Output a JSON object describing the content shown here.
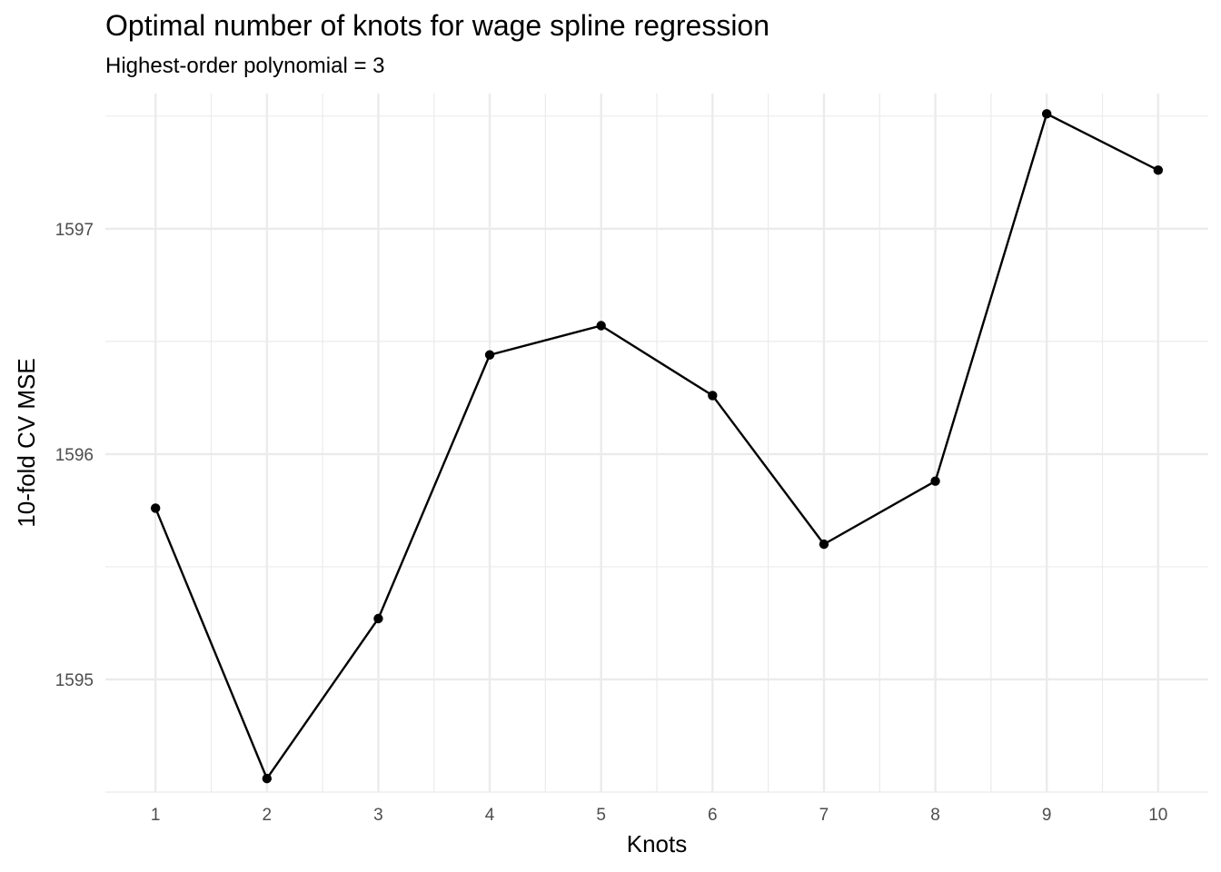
{
  "chart_data": {
    "type": "line",
    "title": "Optimal number of knots for wage spline regression",
    "subtitle": "Highest-order polynomial = 3",
    "xlabel": "Knots",
    "ylabel": "10-fold CV MSE",
    "x": [
      1,
      2,
      3,
      4,
      5,
      6,
      7,
      8,
      9,
      10
    ],
    "y": [
      1595.76,
      1594.56,
      1595.27,
      1596.44,
      1596.57,
      1596.26,
      1595.6,
      1595.88,
      1597.51,
      1597.26
    ],
    "x_ticks": [
      "1",
      "2",
      "3",
      "4",
      "5",
      "6",
      "7",
      "8",
      "9",
      "10"
    ],
    "y_ticks": [
      "1595",
      "1596",
      "1597"
    ],
    "xlim": [
      0.55,
      10.45
    ],
    "ylim": [
      1594.5,
      1597.6
    ],
    "grid": true,
    "legend": "none",
    "colors": {
      "line": "#000000",
      "point": "#000000",
      "grid": "#ebebeb"
    }
  }
}
